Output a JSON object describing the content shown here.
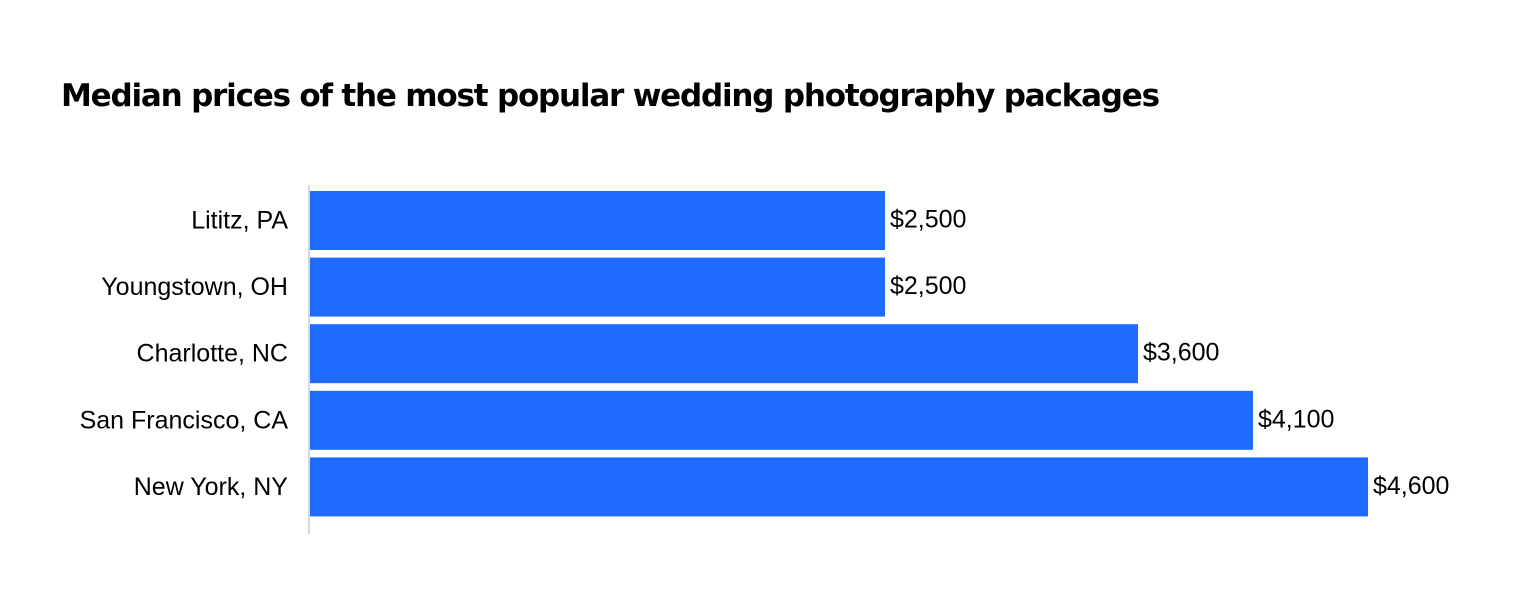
{
  "chart_data": {
    "type": "bar",
    "orientation": "horizontal",
    "title": "Median prices of the most popular wedding photography packages",
    "categories": [
      "Lititz, PA",
      "Youngstown, OH",
      "Charlotte, NC",
      "San Francisco, CA",
      "New York, NY"
    ],
    "values": [
      2500,
      2500,
      3600,
      4100,
      4600
    ],
    "value_labels": [
      "$2,500",
      "$2,500",
      "$3,600",
      "$4,100",
      "$4,600"
    ],
    "xlim": [
      0,
      4600
    ],
    "grid": false,
    "legend": "none",
    "colors": {
      "bar": "#1f6bff",
      "axis": "#cccccc",
      "text": "#000000"
    }
  }
}
